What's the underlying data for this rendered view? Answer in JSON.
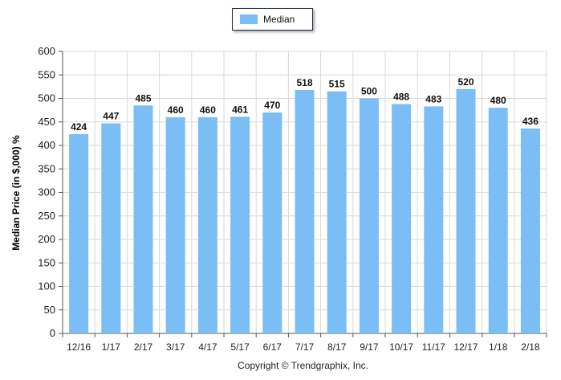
{
  "legend": {
    "label": "Median"
  },
  "colors": {
    "bar": "#7bbdf5",
    "grid": "#d9d9d9",
    "axis": "#555555"
  },
  "copyright": "Copyright © Trendgraphix, Inc.",
  "chart_data": {
    "type": "bar",
    "title": "",
    "xlabel": "",
    "ylabel": "Median Price (in $,000) %",
    "ylim": [
      0,
      600
    ],
    "yticks": [
      0,
      50,
      100,
      150,
      200,
      250,
      300,
      350,
      400,
      450,
      500,
      550,
      600
    ],
    "grid": true,
    "legend_position": "top-center",
    "categories": [
      "12/16",
      "1/17",
      "2/17",
      "3/17",
      "4/17",
      "5/17",
      "6/17",
      "7/17",
      "8/17",
      "9/17",
      "10/17",
      "11/17",
      "12/17",
      "1/18",
      "2/18"
    ],
    "series": [
      {
        "name": "Median",
        "values": [
          424,
          447,
          485,
          460,
          460,
          461,
          470,
          518,
          515,
          500,
          488,
          483,
          520,
          480,
          436
        ]
      }
    ]
  }
}
